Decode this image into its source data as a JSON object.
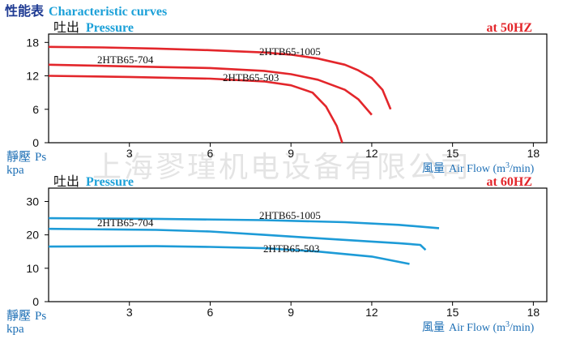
{
  "header": {
    "zh": "性能表",
    "en": "Characteristic curves"
  },
  "watermark": "上海翏瑾机电设备有限公司",
  "chart_data": [
    {
      "type": "line",
      "pressure_label": {
        "zh": "吐出",
        "en": "Pressure"
      },
      "frequency": "at 50HZ",
      "y_label": {
        "zh": "靜壓",
        "en": "Ps",
        "unit": "kpa"
      },
      "x_label": {
        "zh": "風量",
        "en": "Air Flow (m",
        "sup": "3",
        "end": "/min)"
      },
      "xlim": [
        0,
        18.5
      ],
      "xticks": [
        3,
        6,
        9,
        12,
        15,
        18
      ],
      "ylim": [
        0,
        19.5
      ],
      "yticks": [
        0,
        6,
        12,
        18
      ],
      "series": [
        {
          "name": "2HTB65-1005",
          "color": "#e3262b",
          "x": [
            0,
            2,
            4,
            6,
            8,
            9,
            10,
            11,
            11.5,
            12,
            12.4,
            12.7
          ],
          "values": [
            17.2,
            17.1,
            16.9,
            16.6,
            16.2,
            15.8,
            15.1,
            14,
            13,
            11.6,
            9.5,
            6
          ]
        },
        {
          "name": "2HTB65-704",
          "color": "#e3262b",
          "x": [
            0,
            3,
            6,
            8,
            9,
            10,
            11,
            11.5,
            12
          ],
          "values": [
            14,
            13.7,
            13.4,
            12.9,
            12.3,
            11.3,
            9.5,
            7.8,
            5
          ]
        },
        {
          "name": "2HTB65-503",
          "color": "#e3262b",
          "x": [
            0,
            3,
            6,
            8,
            9,
            9.8,
            10.3,
            10.7,
            10.9
          ],
          "values": [
            12,
            11.8,
            11.5,
            11,
            10.3,
            9,
            6.5,
            3,
            0
          ]
        }
      ]
    },
    {
      "type": "line",
      "pressure_label": {
        "zh": "吐出",
        "en": "Pressure"
      },
      "frequency": "at 60HZ",
      "y_label": {
        "zh": "靜壓",
        "en": "Ps",
        "unit": "kpa"
      },
      "x_label": {
        "zh": "風量",
        "en": "Air Flow (m",
        "sup": "3",
        "end": "/min)"
      },
      "xlim": [
        0,
        18.5
      ],
      "xticks": [
        3,
        6,
        9,
        12,
        15,
        18
      ],
      "ylim": [
        0,
        34
      ],
      "yticks": [
        0,
        10,
        20,
        30
      ],
      "series": [
        {
          "name": "2HTB65-1005",
          "color": "#1d9bd7",
          "x": [
            0,
            4,
            8,
            11,
            13,
            14.5
          ],
          "values": [
            25,
            24.8,
            24.4,
            23.8,
            23,
            22
          ]
        },
        {
          "name": "2HTB65-704",
          "color": "#1d9bd7",
          "x": [
            0,
            4,
            6,
            8,
            10,
            12,
            13,
            13.8,
            14
          ],
          "values": [
            21.8,
            21.5,
            21,
            20,
            19,
            18,
            17.5,
            17,
            15.5
          ]
        },
        {
          "name": "2HTB65-503",
          "color": "#1d9bd7",
          "x": [
            0,
            4,
            6,
            8,
            10,
            12,
            13.4
          ],
          "values": [
            16.5,
            16.6,
            16.4,
            16,
            15,
            13.5,
            11.3
          ]
        }
      ]
    }
  ]
}
